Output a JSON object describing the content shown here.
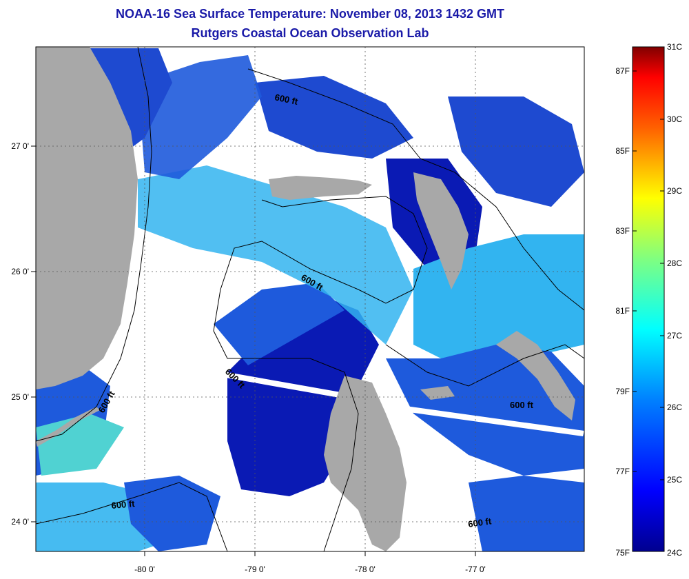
{
  "header": {
    "title": "NOAA-16 Sea Surface Temperature:  November 08, 2013 1432 GMT",
    "subtitle": "Rutgers Coastal Ocean Observation Lab"
  },
  "map": {
    "lon_ticks": [
      "-80 0'",
      "-79 0'",
      "-78 0'",
      "-77 0'"
    ],
    "lat_ticks": [
      "27 0'",
      "26 0'",
      "25 0'",
      "24 0'"
    ],
    "contour_label": "600 ft",
    "colors": {
      "land": "#a8a8a8",
      "cloud": "#ffffff",
      "deep_blue": "#0a1ab4",
      "mid_blue": "#1e5adc",
      "cyan": "#32b4f0",
      "teal": "#50d2d2"
    }
  },
  "colorbar": {
    "celsius": [
      "31C",
      "30C",
      "29C",
      "28C",
      "27C",
      "26C",
      "25C",
      "24C"
    ],
    "fahrenheit": [
      "87F",
      "85F",
      "83F",
      "81F",
      "79F",
      "77F",
      "75F"
    ]
  }
}
